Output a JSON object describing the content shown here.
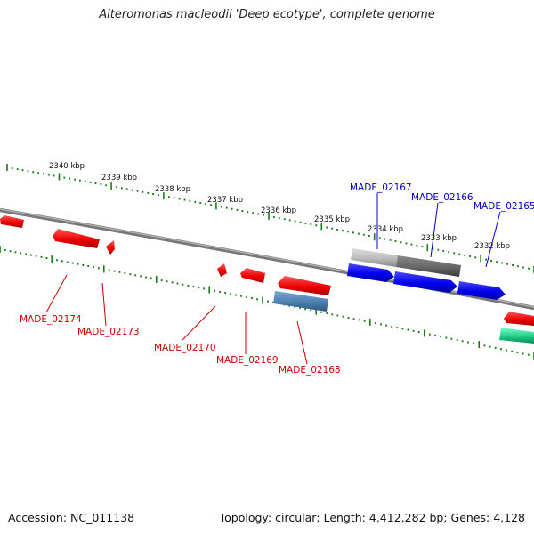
{
  "title": "Alteromonas macleodii 'Deep ecotype', complete genome",
  "footer": {
    "accession": "Accession: NC_011138",
    "summary": "Topology: circular; Length: 4,412,282 bp; Genes: 4,128"
  },
  "ticks": [
    "2340 kbp",
    "2339 kbp",
    "2338 kbp",
    "2337 kbp",
    "2336 kbp",
    "2335 kbp",
    "2334 kbp",
    "2333 kbp",
    "2332 kbp"
  ],
  "genes_top": [
    "MADE_02167",
    "MADE_02166",
    "MADE_02165"
  ],
  "genes_bottom": [
    "MADE_02174",
    "MADE_02173",
    "MADE_02170",
    "MADE_02169",
    "MADE_02168"
  ],
  "colors": {
    "forward": "#0000ee",
    "reverse": "#ee0000",
    "rna": "#4a7fb0",
    "pseudo_light": "#bbbbbb",
    "pseudo_dark": "#666666",
    "other": "#22cc88",
    "tick": "#1a7a1a",
    "backbone": "#777777",
    "label_top": "#0000cc",
    "label_bottom": "#cc0000"
  }
}
